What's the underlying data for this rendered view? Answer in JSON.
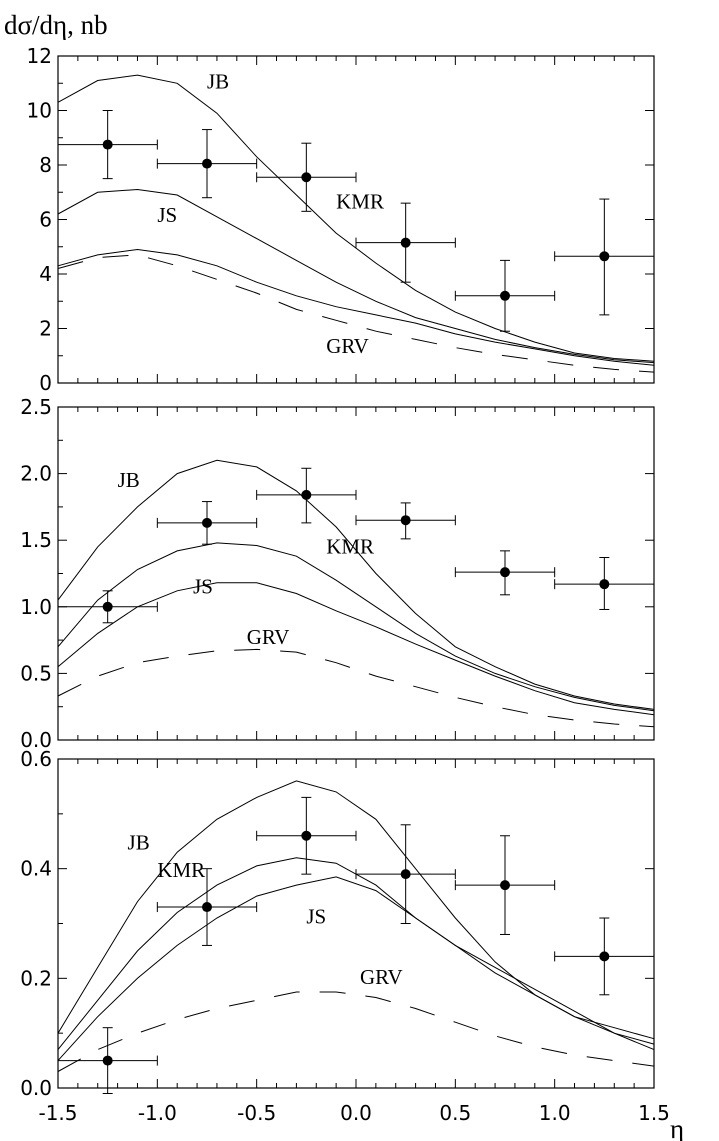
{
  "chart_data": [
    {
      "type": "line",
      "panel": "top",
      "title": "",
      "ylabel": "dσ/dη, nb",
      "xlabel": "",
      "xlim": [
        -1.5,
        1.5
      ],
      "ylim": [
        0,
        12
      ],
      "yticks": [
        0,
        2,
        4,
        6,
        8,
        10,
        12
      ],
      "ytick_labels": [
        "0",
        "2",
        "4",
        "6",
        "8",
        "10",
        "12"
      ],
      "xtick_labels": [],
      "series": [
        {
          "name": "JB",
          "style": "solid",
          "x": [
            -1.5,
            -1.3,
            -1.1,
            -0.9,
            -0.7,
            -0.5,
            -0.3,
            -0.1,
            0.1,
            0.3,
            0.5,
            0.7,
            0.9,
            1.1,
            1.3,
            1.5
          ],
          "y": [
            10.3,
            11.1,
            11.3,
            11.0,
            9.9,
            8.3,
            6.9,
            5.5,
            4.4,
            3.4,
            2.6,
            2.0,
            1.5,
            1.1,
            0.9,
            0.8
          ]
        },
        {
          "name": "KMR",
          "style": "solid",
          "x": [
            -1.5,
            -1.3,
            -1.1,
            -0.9,
            -0.7,
            -0.5,
            -0.3,
            -0.1,
            0.1,
            0.3,
            0.5,
            0.7,
            0.9,
            1.1,
            1.3,
            1.5
          ],
          "y": [
            6.2,
            7.0,
            7.1,
            6.9,
            6.1,
            5.3,
            4.5,
            3.7,
            3.0,
            2.4,
            2.0,
            1.6,
            1.3,
            1.05,
            0.85,
            0.75
          ]
        },
        {
          "name": "JS",
          "style": "solid",
          "x": [
            -1.5,
            -1.3,
            -1.1,
            -0.9,
            -0.7,
            -0.5,
            -0.3,
            -0.1,
            0.1,
            0.3,
            0.5,
            0.7,
            0.9,
            1.1,
            1.3,
            1.5
          ],
          "y": [
            4.3,
            4.7,
            4.9,
            4.7,
            4.3,
            3.7,
            3.2,
            2.8,
            2.5,
            2.2,
            1.8,
            1.5,
            1.25,
            1.0,
            0.8,
            0.65
          ]
        },
        {
          "name": "GRV",
          "style": "dashed",
          "x": [
            -1.5,
            -1.3,
            -1.1,
            -0.9,
            -0.7,
            -0.5,
            -0.3,
            -0.1,
            0.1,
            0.3,
            0.5,
            0.7,
            0.9,
            1.1,
            1.3,
            1.5
          ],
          "y": [
            4.2,
            4.6,
            4.7,
            4.3,
            3.8,
            3.3,
            2.7,
            2.3,
            1.9,
            1.6,
            1.3,
            1.05,
            0.85,
            0.65,
            0.5,
            0.4
          ]
        }
      ],
      "curve_labels": [
        {
          "text": "JB",
          "x": -0.75,
          "y": 10.8
        },
        {
          "text": "KMR",
          "x": -0.1,
          "y": 6.4
        },
        {
          "text": "JS",
          "x": -1.0,
          "y": 5.9
        },
        {
          "text": "GRV",
          "x": -0.15,
          "y": 1.1
        }
      ],
      "points": [
        {
          "x": -1.25,
          "y": 8.75,
          "xerr": 0.25,
          "ylo": 7.5,
          "yhi": 10.0
        },
        {
          "x": -0.75,
          "y": 8.05,
          "xerr": 0.25,
          "ylo": 6.8,
          "yhi": 9.3
        },
        {
          "x": -0.25,
          "y": 7.55,
          "xerr": 0.25,
          "ylo": 6.3,
          "yhi": 8.8
        },
        {
          "x": 0.25,
          "y": 5.15,
          "xerr": 0.25,
          "ylo": 3.7,
          "yhi": 6.6
        },
        {
          "x": 0.75,
          "y": 3.2,
          "xerr": 0.25,
          "ylo": 1.9,
          "yhi": 4.5
        },
        {
          "x": 1.25,
          "y": 4.65,
          "xerr": 0.25,
          "ylo": 2.5,
          "yhi": 6.75
        }
      ]
    },
    {
      "type": "line",
      "panel": "middle",
      "title": "",
      "ylabel": "",
      "xlabel": "",
      "xlim": [
        -1.5,
        1.5
      ],
      "ylim": [
        0,
        2.5
      ],
      "yticks": [
        0,
        0.5,
        1.0,
        1.5,
        2.0,
        2.5
      ],
      "ytick_labels": [
        "0.0",
        "0.5",
        "1.0",
        "1.5",
        "2.0",
        "2.5"
      ],
      "xtick_labels": [],
      "series": [
        {
          "name": "JB",
          "style": "solid",
          "x": [
            -1.5,
            -1.3,
            -1.1,
            -0.9,
            -0.7,
            -0.5,
            -0.3,
            -0.1,
            0.1,
            0.3,
            0.5,
            0.7,
            0.9,
            1.1,
            1.3,
            1.5
          ],
          "y": [
            1.05,
            1.45,
            1.75,
            2.0,
            2.1,
            2.05,
            1.87,
            1.6,
            1.25,
            0.95,
            0.7,
            0.55,
            0.42,
            0.33,
            0.27,
            0.23
          ]
        },
        {
          "name": "KMR",
          "style": "solid",
          "x": [
            -1.5,
            -1.3,
            -1.1,
            -0.9,
            -0.7,
            -0.5,
            -0.3,
            -0.1,
            0.1,
            0.3,
            0.5,
            0.7,
            0.9,
            1.1,
            1.3,
            1.5
          ],
          "y": [
            0.7,
            1.05,
            1.28,
            1.42,
            1.48,
            1.46,
            1.38,
            1.2,
            1.0,
            0.8,
            0.63,
            0.5,
            0.4,
            0.32,
            0.26,
            0.22
          ]
        },
        {
          "name": "JS",
          "style": "solid",
          "x": [
            -1.5,
            -1.3,
            -1.1,
            -0.9,
            -0.7,
            -0.5,
            -0.3,
            -0.1,
            0.1,
            0.3,
            0.5,
            0.7,
            0.9,
            1.1,
            1.3,
            1.5
          ],
          "y": [
            0.55,
            0.8,
            1.0,
            1.12,
            1.18,
            1.18,
            1.1,
            0.97,
            0.85,
            0.72,
            0.6,
            0.48,
            0.37,
            0.28,
            0.23,
            0.19
          ]
        },
        {
          "name": "GRV",
          "style": "dashed",
          "x": [
            -1.5,
            -1.3,
            -1.1,
            -0.9,
            -0.7,
            -0.5,
            -0.3,
            -0.1,
            0.1,
            0.3,
            0.5,
            0.7,
            0.9,
            1.1,
            1.3,
            1.5
          ],
          "y": [
            0.33,
            0.48,
            0.58,
            0.63,
            0.67,
            0.68,
            0.66,
            0.58,
            0.48,
            0.4,
            0.32,
            0.25,
            0.19,
            0.15,
            0.12,
            0.1
          ]
        }
      ],
      "curve_labels": [
        {
          "text": "JB",
          "x": -1.2,
          "y": 1.9
        },
        {
          "text": "KMR",
          "x": -0.15,
          "y": 1.4
        },
        {
          "text": "JS",
          "x": -0.82,
          "y": 1.1
        },
        {
          "text": "GRV",
          "x": -0.55,
          "y": 0.72
        }
      ],
      "points": [
        {
          "x": -1.25,
          "y": 1.0,
          "xerr": 0.25,
          "ylo": 0.88,
          "yhi": 1.12
        },
        {
          "x": -0.75,
          "y": 1.63,
          "xerr": 0.25,
          "ylo": 1.47,
          "yhi": 1.79
        },
        {
          "x": -0.25,
          "y": 1.84,
          "xerr": 0.25,
          "ylo": 1.63,
          "yhi": 2.04
        },
        {
          "x": 0.25,
          "y": 1.65,
          "xerr": 0.25,
          "ylo": 1.51,
          "yhi": 1.78
        },
        {
          "x": 0.75,
          "y": 1.26,
          "xerr": 0.25,
          "ylo": 1.09,
          "yhi": 1.42
        },
        {
          "x": 1.25,
          "y": 1.17,
          "xerr": 0.25,
          "ylo": 0.98,
          "yhi": 1.37
        }
      ]
    },
    {
      "type": "line",
      "panel": "bottom",
      "title": "",
      "ylabel": "",
      "xlabel": "η",
      "xlim": [
        -1.5,
        1.5
      ],
      "ylim": [
        0,
        0.6
      ],
      "yticks": [
        0,
        0.2,
        0.4,
        0.6
      ],
      "ytick_labels": [
        "0.0",
        "0.2",
        "0.4",
        "0.6"
      ],
      "xticks": [
        -1.5,
        -1.0,
        -0.5,
        0.0,
        0.5,
        1.0,
        1.5
      ],
      "xtick_labels": [
        "-1.5",
        "-1.0",
        "-0.5",
        "0.0",
        "0.5",
        "1.0",
        "1.5"
      ],
      "series": [
        {
          "name": "JB",
          "style": "solid",
          "x": [
            -1.5,
            -1.3,
            -1.1,
            -0.9,
            -0.7,
            -0.5,
            -0.3,
            -0.1,
            0.1,
            0.3,
            0.5,
            0.7,
            0.9,
            1.1,
            1.3,
            1.5
          ],
          "y": [
            0.1,
            0.22,
            0.34,
            0.43,
            0.49,
            0.53,
            0.56,
            0.54,
            0.49,
            0.4,
            0.31,
            0.23,
            0.17,
            0.13,
            0.11,
            0.09
          ]
        },
        {
          "name": "KMR",
          "style": "solid",
          "x": [
            -1.5,
            -1.3,
            -1.1,
            -0.9,
            -0.7,
            -0.5,
            -0.3,
            -0.1,
            0.1,
            0.3,
            0.5,
            0.7,
            0.9,
            1.1,
            1.3,
            1.5
          ],
          "y": [
            0.07,
            0.16,
            0.25,
            0.32,
            0.37,
            0.405,
            0.42,
            0.41,
            0.37,
            0.31,
            0.26,
            0.21,
            0.17,
            0.13,
            0.1,
            0.08
          ]
        },
        {
          "name": "JS",
          "style": "solid",
          "x": [
            -1.5,
            -1.3,
            -1.1,
            -0.9,
            -0.7,
            -0.5,
            -0.3,
            -0.1,
            0.1,
            0.3,
            0.5,
            0.7,
            0.9,
            1.1,
            1.3,
            1.5
          ],
          "y": [
            0.05,
            0.13,
            0.2,
            0.26,
            0.31,
            0.35,
            0.37,
            0.385,
            0.36,
            0.31,
            0.26,
            0.22,
            0.18,
            0.14,
            0.1,
            0.07
          ]
        },
        {
          "name": "GRV",
          "style": "dashed",
          "x": [
            -1.5,
            -1.3,
            -1.1,
            -0.9,
            -0.7,
            -0.5,
            -0.3,
            -0.1,
            0.1,
            0.3,
            0.5,
            0.7,
            0.9,
            1.1,
            1.3,
            1.5
          ],
          "y": [
            0.03,
            0.07,
            0.1,
            0.125,
            0.145,
            0.16,
            0.175,
            0.175,
            0.165,
            0.145,
            0.12,
            0.095,
            0.075,
            0.06,
            0.05,
            0.04
          ]
        }
      ],
      "curve_labels": [
        {
          "text": "JB",
          "x": -1.15,
          "y": 0.435
        },
        {
          "text": "KMR",
          "x": -1.0,
          "y": 0.385
        },
        {
          "text": "JS",
          "x": -0.25,
          "y": 0.3
        },
        {
          "text": "GRV",
          "x": 0.02,
          "y": 0.19
        }
      ],
      "points": [
        {
          "x": -1.25,
          "y": 0.05,
          "xerr": 0.25,
          "ylo": -0.01,
          "yhi": 0.11
        },
        {
          "x": -0.75,
          "y": 0.33,
          "xerr": 0.25,
          "ylo": 0.26,
          "yhi": 0.4
        },
        {
          "x": -0.25,
          "y": 0.46,
          "xerr": 0.25,
          "ylo": 0.39,
          "yhi": 0.53
        },
        {
          "x": 0.25,
          "y": 0.39,
          "xerr": 0.25,
          "ylo": 0.3,
          "yhi": 0.48
        },
        {
          "x": 0.75,
          "y": 0.37,
          "xerr": 0.25,
          "ylo": 0.28,
          "yhi": 0.46
        },
        {
          "x": 1.25,
          "y": 0.24,
          "xerr": 0.25,
          "ylo": 0.17,
          "yhi": 0.31
        }
      ]
    }
  ]
}
